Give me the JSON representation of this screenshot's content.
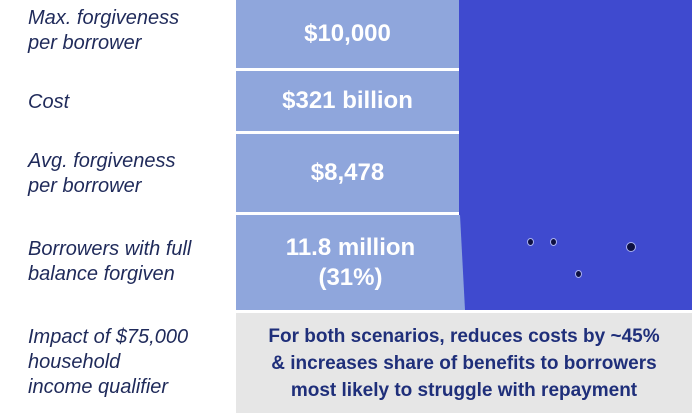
{
  "rows": [
    {
      "label": "Max. forgiveness\nper borrower",
      "value": "$10,000"
    },
    {
      "label": "Cost",
      "value": "$321 billion"
    },
    {
      "label": "Avg. forgiveness\nper borrower",
      "value": "$8,478"
    },
    {
      "label": "Borrowers with full\nbalance forgiven",
      "value": "11.8 million\n(31%)"
    },
    {
      "label": "Impact of $75,000\nhousehold\nincome qualifier",
      "value": "For both scenarios, reduces costs by ~45%\n& increases share of benefits to borrowers\nmost likely to struggle with repayment"
    }
  ],
  "colors": {
    "label_text": "#1f2a5a",
    "value_cell": "#8fa6dc",
    "panel": "#3f4acf",
    "impact_bg": "#e6e6e6",
    "impact_text": "#1f2f7a"
  }
}
